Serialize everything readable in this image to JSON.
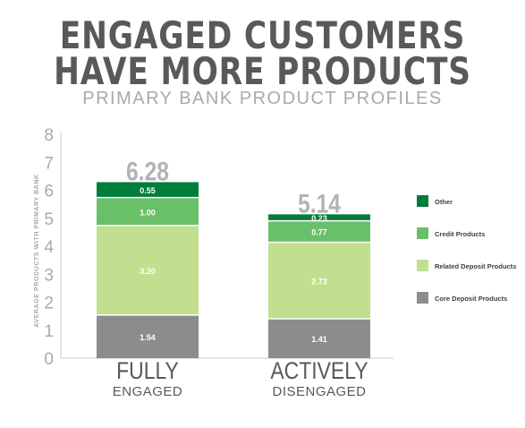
{
  "title_line1": "ENGAGED CUSTOMERS",
  "title_line2": "HAVE MORE PRODUCTS",
  "subtitle": "PRIMARY BANK PRODUCT PROFILES",
  "chart_data": {
    "type": "bar",
    "stacked": true,
    "ylabel": "AVERAGE PRODUCTS WITH PRIMARY BANK",
    "ylim": [
      0,
      8
    ],
    "yticks": [
      0,
      1,
      2,
      3,
      4,
      5,
      6,
      7,
      8
    ],
    "grid": false,
    "legend_position": "right",
    "categories": [
      {
        "line1": "FULLY",
        "line2": "ENGAGED"
      },
      {
        "line1": "ACTIVELY",
        "line2": "DISENGAGED"
      }
    ],
    "totals": [
      "6.28",
      "5.14"
    ],
    "series": [
      {
        "name": "Core Deposit Products",
        "color": "#8a8c8e",
        "values": [
          1.54,
          1.41
        ],
        "labels": [
          "1.54",
          "1.41"
        ]
      },
      {
        "name": "Related Deposit Products",
        "color": "#c1df8f",
        "values": [
          3.2,
          2.73
        ],
        "labels": [
          "3.20",
          "2.73"
        ]
      },
      {
        "name": "Credit Products",
        "color": "#6abf69",
        "values": [
          1.0,
          0.77
        ],
        "labels": [
          "1.00",
          "0.77"
        ]
      },
      {
        "name": "Other",
        "color": "#007d3a",
        "values": [
          0.55,
          0.23
        ],
        "labels": [
          "0.55",
          "0.23"
        ]
      }
    ],
    "legend_order": [
      "Other",
      "Credit Products",
      "Related Deposit Products",
      "Core Deposit Products"
    ]
  }
}
